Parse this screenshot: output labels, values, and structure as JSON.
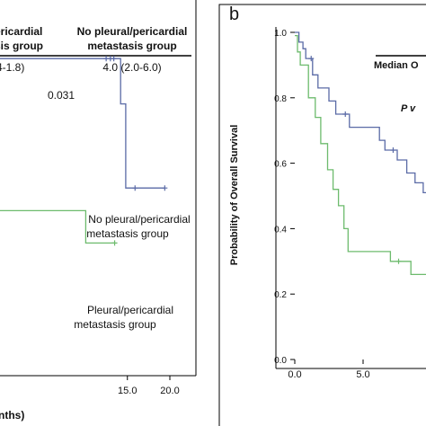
{
  "left_panel": {
    "table": {
      "col1_header": [
        "ericardial",
        "sis group"
      ],
      "col2_header": [
        "No pleural/pericardial",
        "metastasis group"
      ],
      "col1_value": "4-1.8)",
      "col2_value": "4.0 (2.0-6.0)",
      "p_value": "0.031"
    },
    "annotations": {
      "blue_label": [
        "No pleural/pericardial",
        "metastasis group"
      ],
      "green_label": [
        "Pleural/pericardial",
        "metastasis group"
      ]
    },
    "x_ticks": [
      "15.0",
      "20.0"
    ],
    "x_label_fragment": "nths)"
  },
  "right_panel": {
    "panel_letter": "b",
    "ylabel": "Probability of Overall Survival",
    "y_ticks": [
      "1.0",
      "0.8",
      "0.6",
      "0.4",
      "0.2",
      "0.0"
    ],
    "x_ticks": [
      "0.0",
      "5.0"
    ],
    "legend_header": "Median O",
    "legend_p": "P v"
  },
  "colors": {
    "blue": "#5a6aa6",
    "green": "#6dbb6d",
    "axis": "#000000"
  },
  "chart_data": [
    {
      "type": "line",
      "xlabel": "",
      "ylabel": "",
      "x_ticks": [
        15.0,
        20.0
      ],
      "series": [
        {
          "name": "No pleural/pericardial metastasis group",
          "color": "#5a6aa6",
          "points": [
            [
              0,
              0.49
            ],
            [
              12.5,
              0.49
            ],
            [
              13.5,
              0.49
            ],
            [
              14.2,
              0.49
            ],
            [
              14.2,
              0.42
            ],
            [
              14.8,
              0.42
            ],
            [
              14.8,
              0.29
            ],
            [
              19.4,
              0.29
            ]
          ],
          "censored": [
            [
              12.5,
              0.49
            ],
            [
              13.0,
              0.49
            ],
            [
              13.4,
              0.49
            ],
            [
              15.9,
              0.29
            ],
            [
              19.4,
              0.29
            ]
          ]
        },
        {
          "name": "Pleural/pericardial metastasis group",
          "color": "#6dbb6d",
          "points": [
            [
              0,
              0.255
            ],
            [
              10.1,
              0.255
            ],
            [
              10.1,
              0.205
            ],
            [
              13.5,
              0.205
            ]
          ],
          "censored": [
            [
              13.5,
              0.205
            ]
          ]
        }
      ]
    },
    {
      "type": "line",
      "xlabel": "",
      "ylabel": "Probability of Overall Survival",
      "ylim": [
        0,
        1.0
      ],
      "x_ticks": [
        0.0,
        5.0
      ],
      "y_ticks": [
        0.0,
        0.2,
        0.4,
        0.6,
        0.8,
        1.0
      ],
      "series": [
        {
          "color": "#5a6aa6",
          "points": [
            [
              0,
              1.0
            ],
            [
              0.3,
              1.0
            ],
            [
              0.3,
              0.97
            ],
            [
              0.6,
              0.97
            ],
            [
              0.6,
              0.95
            ],
            [
              0.8,
              0.95
            ],
            [
              0.8,
              0.92
            ],
            [
              1.3,
              0.92
            ],
            [
              1.3,
              0.87
            ],
            [
              1.7,
              0.87
            ],
            [
              1.7,
              0.83
            ],
            [
              2.5,
              0.83
            ],
            [
              2.5,
              0.79
            ],
            [
              3.0,
              0.79
            ],
            [
              3.0,
              0.75
            ],
            [
              4.0,
              0.75
            ],
            [
              4.0,
              0.71
            ],
            [
              6.2,
              0.71
            ],
            [
              6.2,
              0.67
            ],
            [
              6.6,
              0.67
            ],
            [
              6.6,
              0.64
            ],
            [
              7.5,
              0.64
            ],
            [
              7.5,
              0.61
            ],
            [
              8.2,
              0.61
            ],
            [
              8.2,
              0.57
            ],
            [
              8.8,
              0.57
            ],
            [
              8.8,
              0.54
            ],
            [
              9.4,
              0.54
            ],
            [
              9.4,
              0.51
            ],
            [
              9.9,
              0.51
            ],
            [
              9.9,
              0.47
            ],
            [
              10.5,
              0.47
            ]
          ],
          "censored": [
            [
              1.2,
              0.92
            ],
            [
              3.7,
              0.75
            ],
            [
              7.2,
              0.64
            ],
            [
              10.2,
              0.47
            ]
          ]
        },
        {
          "color": "#6dbb6d",
          "points": [
            [
              0,
              0.99
            ],
            [
              0.2,
              0.99
            ],
            [
              0.2,
              0.94
            ],
            [
              0.4,
              0.94
            ],
            [
              0.4,
              0.9
            ],
            [
              1.0,
              0.9
            ],
            [
              1.0,
              0.8
            ],
            [
              1.5,
              0.8
            ],
            [
              1.5,
              0.74
            ],
            [
              1.9,
              0.74
            ],
            [
              1.9,
              0.66
            ],
            [
              2.4,
              0.66
            ],
            [
              2.4,
              0.58
            ],
            [
              2.8,
              0.58
            ],
            [
              2.8,
              0.52
            ],
            [
              3.2,
              0.52
            ],
            [
              3.2,
              0.47
            ],
            [
              3.6,
              0.47
            ],
            [
              3.6,
              0.4
            ],
            [
              3.9,
              0.4
            ],
            [
              3.9,
              0.33
            ],
            [
              7.0,
              0.33
            ],
            [
              7.0,
              0.3
            ],
            [
              8.5,
              0.3
            ],
            [
              8.5,
              0.26
            ],
            [
              10.5,
              0.26
            ]
          ],
          "censored": [
            [
              7.6,
              0.3
            ]
          ]
        }
      ]
    }
  ]
}
